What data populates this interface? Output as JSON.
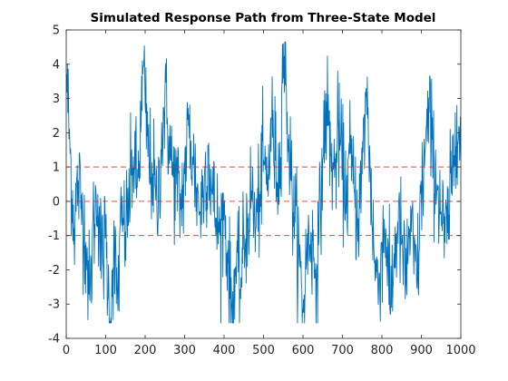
{
  "chart_data": {
    "type": "line",
    "title": "Simulated Response Path from Three-State Model",
    "xlabel": "",
    "ylabel": "",
    "xlim": [
      0,
      1000
    ],
    "ylim": [
      -4,
      5
    ],
    "x_ticks": [
      0,
      100,
      200,
      300,
      400,
      500,
      600,
      700,
      800,
      900,
      1000
    ],
    "y_ticks": [
      -4,
      -3,
      -2,
      -1,
      0,
      1,
      2,
      3,
      4,
      5
    ],
    "grid": false,
    "legend": "none",
    "series": [
      {
        "color": "#0072BD",
        "n_points": 1000,
        "approx_path": [
          [
            1,
            3.7
          ],
          [
            10,
            1.4
          ],
          [
            20,
            -0.8
          ],
          [
            30,
            0.6
          ],
          [
            40,
            -0.2
          ],
          [
            50,
            -1.2
          ],
          [
            60,
            -2.9
          ],
          [
            70,
            -0.5
          ],
          [
            80,
            0.2
          ],
          [
            90,
            -1.8
          ],
          [
            100,
            -1.0
          ],
          [
            110,
            -3.5
          ],
          [
            120,
            -1.5
          ],
          [
            130,
            -2.8
          ],
          [
            140,
            -0.6
          ],
          [
            150,
            -0.9
          ],
          [
            160,
            0.1
          ],
          [
            170,
            1.3
          ],
          [
            180,
            0.4
          ],
          [
            190,
            2.3
          ],
          [
            195,
            3.95
          ],
          [
            200,
            2.8
          ],
          [
            210,
            1.2
          ],
          [
            220,
            0.8
          ],
          [
            230,
            -0.4
          ],
          [
            240,
            1.5
          ],
          [
            250,
            3.0
          ],
          [
            260,
            1.9
          ],
          [
            270,
            0.8
          ],
          [
            280,
            0.5
          ],
          [
            290,
            -0.2
          ],
          [
            300,
            0.8
          ],
          [
            310,
            2.2
          ],
          [
            320,
            1.3
          ],
          [
            330,
            0.4
          ],
          [
            340,
            -0.3
          ],
          [
            350,
            0.6
          ],
          [
            360,
            1.4
          ],
          [
            370,
            0.2
          ],
          [
            380,
            -0.5
          ],
          [
            390,
            -1.0
          ],
          [
            400,
            -0.2
          ],
          [
            410,
            -1.8
          ],
          [
            420,
            -3.2
          ],
          [
            430,
            -1.9
          ],
          [
            440,
            -2.6
          ],
          [
            450,
            -1.4
          ],
          [
            460,
            -0.5
          ],
          [
            470,
            0.3
          ],
          [
            480,
            -0.8
          ],
          [
            490,
            0.2
          ],
          [
            500,
            1.2
          ],
          [
            510,
            0.4
          ],
          [
            520,
            2.4
          ],
          [
            530,
            1.2
          ],
          [
            540,
            0.6
          ],
          [
            550,
            4.6
          ],
          [
            560,
            2.6
          ],
          [
            570,
            0.6
          ],
          [
            580,
            -0.6
          ],
          [
            590,
            -1.6
          ],
          [
            600,
            -3.25
          ],
          [
            610,
            -1.4
          ],
          [
            620,
            -0.9
          ],
          [
            630,
            -2.0
          ],
          [
            640,
            -1.2
          ],
          [
            650,
            1.2
          ],
          [
            660,
            2.9
          ],
          [
            670,
            1.4
          ],
          [
            680,
            0.7
          ],
          [
            690,
            2.1
          ],
          [
            700,
            1.0
          ],
          [
            710,
            0.2
          ],
          [
            720,
            1.4
          ],
          [
            730,
            0.3
          ],
          [
            740,
            -0.5
          ],
          [
            750,
            0.8
          ],
          [
            760,
            3.3
          ],
          [
            770,
            1.0
          ],
          [
            780,
            -1.5
          ],
          [
            790,
            -2.6
          ],
          [
            800,
            -1.2
          ],
          [
            810,
            -0.8
          ],
          [
            820,
            -3.1
          ],
          [
            830,
            -1.8
          ],
          [
            840,
            -0.6
          ],
          [
            850,
            -1.2
          ],
          [
            860,
            -2.4
          ],
          [
            870,
            -0.8
          ],
          [
            880,
            -1.5
          ],
          [
            890,
            -2.2
          ],
          [
            900,
            0.2
          ],
          [
            910,
            1.5
          ],
          [
            920,
            2.6
          ],
          [
            930,
            1.2
          ],
          [
            940,
            0.5
          ],
          [
            950,
            -0.3
          ],
          [
            960,
            -1.2
          ],
          [
            970,
            -0.4
          ],
          [
            980,
            1.0
          ],
          [
            990,
            2.8
          ],
          [
            1000,
            1.2
          ]
        ]
      }
    ],
    "reference_lines": [
      {
        "y": 1,
        "color": "#C53A32",
        "style": "dashed"
      },
      {
        "y": 0,
        "color": "#C53A32",
        "style": "dashed"
      },
      {
        "y": -1,
        "color": "#C53A32",
        "style": "dashed"
      }
    ]
  }
}
